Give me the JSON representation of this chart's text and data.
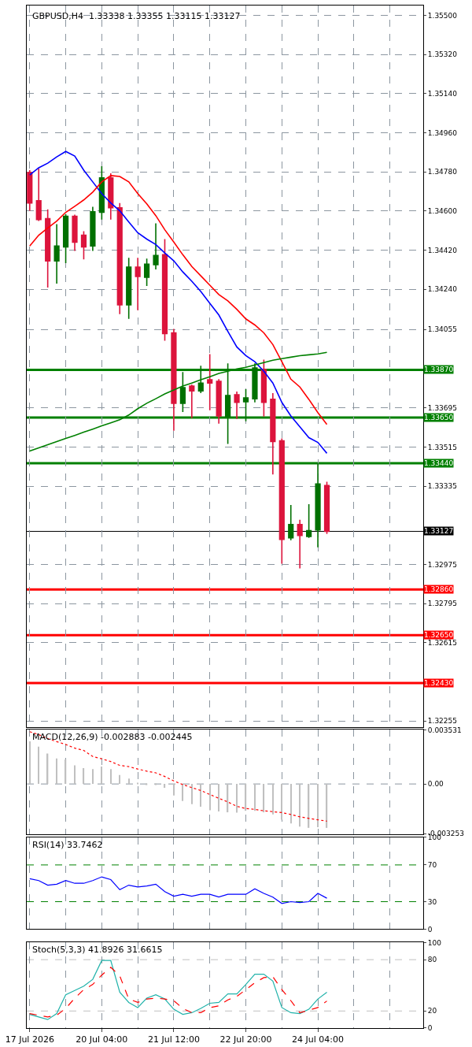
{
  "chart_data": [
    {
      "type": "candlestick",
      "title": "GBPUSD,H4  1.33338 1.33355 1.33115 1.33127",
      "tick_labels": "y",
      "grid": true,
      "ohlc": [
        [
          1.34777,
          1.34788,
          1.34601,
          1.34637
        ],
        [
          1.34647,
          1.34795,
          1.34554,
          1.34561
        ],
        [
          1.34565,
          1.34608,
          1.34248,
          1.34371
        ],
        [
          1.34371,
          1.3454,
          1.34266,
          1.34439
        ],
        [
          1.34435,
          1.34586,
          1.3436,
          1.34576
        ],
        [
          1.34576,
          1.34583,
          1.34417,
          1.34457
        ],
        [
          1.34489,
          1.34507,
          1.34378,
          1.34435
        ],
        [
          1.34439,
          1.34619,
          1.34417,
          1.34597
        ],
        [
          1.34594,
          1.34806,
          1.34561,
          1.34752
        ],
        [
          1.34752,
          1.34773,
          1.34561,
          1.34615
        ],
        [
          1.34615,
          1.34637,
          1.34126,
          1.34169
        ],
        [
          1.34169,
          1.34385,
          1.34104,
          1.34342
        ],
        [
          1.34342,
          1.34385,
          1.34144,
          1.34299
        ],
        [
          1.34295,
          1.34381,
          1.34255,
          1.34356
        ],
        [
          1.34353,
          1.34543,
          1.34331,
          1.34396
        ],
        [
          1.34399,
          1.34471,
          1.34004,
          1.34036
        ],
        [
          1.3404,
          1.34058,
          1.3359,
          1.33716
        ],
        [
          1.33716,
          1.3386,
          1.33676,
          1.33788
        ],
        [
          1.33795,
          1.33802,
          1.33648,
          1.33773
        ],
        [
          1.33773,
          1.33889,
          1.33763,
          1.33809
        ],
        [
          1.33824,
          1.33942,
          1.33684,
          1.33809
        ],
        [
          1.33817,
          1.33827,
          1.33622,
          1.33658
        ],
        [
          1.33655,
          1.33899,
          1.33529,
          1.33752
        ],
        [
          1.33755,
          1.3377,
          1.33644,
          1.3372
        ],
        [
          1.33723,
          1.33781,
          1.33633,
          1.33741
        ],
        [
          1.33737,
          1.33899,
          1.3372,
          1.33878
        ],
        [
          1.33871,
          1.33917,
          1.33655,
          1.3372
        ],
        [
          1.33734,
          1.33763,
          1.33389,
          1.3354
        ],
        [
          1.33543,
          1.33554,
          1.32978,
          1.3309
        ],
        [
          1.33097,
          1.33248,
          1.33086,
          1.33158
        ],
        [
          1.33158,
          1.3318,
          1.32957,
          1.33108
        ],
        [
          1.33104,
          1.33252,
          1.33097,
          1.3313
        ],
        [
          1.33133,
          1.33439,
          1.33054,
          1.33345
        ],
        [
          1.33338,
          1.33355,
          1.33115,
          1.33127
        ],
        null,
        null,
        null,
        null,
        null,
        null,
        null,
        null,
        null,
        null
      ],
      "colors": [
        "#dc143c",
        "#dc143c",
        "#dc143c",
        "#007000",
        "#007000",
        "#dc143c",
        "#dc143c",
        "#007000",
        "#007000",
        "#dc143c",
        "#dc143c",
        "#007000",
        "#dc143c",
        "#007000",
        "#007000",
        "#dc143c",
        "#dc143c",
        "#007000",
        "#dc143c",
        "#007000",
        "#dc143c",
        "#dc143c",
        "#007000",
        "#dc143c",
        "#007000",
        "#007000",
        "#dc143c",
        "#dc143c",
        "#dc143c",
        "#007000",
        "#dc143c",
        "#007000",
        "#007000",
        "#dc143c",
        null,
        null,
        null,
        null,
        null,
        null,
        null,
        null,
        null,
        null
      ],
      "series": [
        {
          "type": "line",
          "color": "#0000ff",
          "values": [
            1.34766,
            1.34799,
            1.3482,
            1.34849,
            1.34874,
            1.34853,
            1.34788,
            1.34734,
            1.3468,
            1.34637,
            1.34601,
            1.3455,
            1.345,
            1.34471,
            1.34446,
            1.34407,
            1.34371,
            1.3432,
            1.34277,
            1.3423,
            1.34176,
            1.34122,
            1.34047,
            1.33975,
            1.33935,
            1.33907,
            1.33863,
            1.33809,
            1.3372,
            1.33658,
            1.33608,
            1.33558,
            1.33536,
            1.33486,
            null,
            null,
            null,
            null,
            null,
            null,
            null,
            null,
            null,
            null
          ]
        },
        {
          "type": "line",
          "color": "#ff0000",
          "values": [
            1.34439,
            1.34489,
            1.34522,
            1.34554,
            1.34594,
            1.34622,
            1.34651,
            1.34687,
            1.34734,
            1.34763,
            1.34759,
            1.34734,
            1.3468,
            1.34633,
            1.34579,
            1.34514,
            1.34457,
            1.34399,
            1.34345,
            1.34302,
            1.34259,
            1.34216,
            1.34187,
            1.34148,
            1.34104,
            1.34076,
            1.3404,
            1.33986,
            1.33907,
            1.33827,
            1.33791,
            1.33734,
            1.33673,
            1.33619,
            null,
            null,
            null,
            null,
            null,
            null,
            null,
            null,
            null,
            null
          ]
        },
        {
          "type": "line",
          "color": "#008000",
          "values": [
            1.33496,
            1.33511,
            1.33525,
            1.3354,
            1.33554,
            1.33568,
            1.33583,
            1.33597,
            1.33612,
            1.33626,
            1.3364,
            1.33662,
            1.33691,
            1.33716,
            1.33737,
            1.33759,
            1.33777,
            1.33795,
            1.33809,
            1.33824,
            1.33838,
            1.33853,
            1.33863,
            1.33874,
            1.33881,
            1.33892,
            1.33903,
            1.33914,
            1.33921,
            1.33928,
            1.33935,
            1.33939,
            1.33943,
            1.3395,
            null,
            null,
            null,
            null,
            null,
            null,
            null,
            null,
            null,
            null
          ]
        }
      ],
      "ylim": [
        1.32225,
        1.35545
      ],
      "yticks": [
        {
          "value": 1.355,
          "label": "1.35500"
        },
        {
          "value": 1.3532,
          "label": "1.35320"
        },
        {
          "value": 1.3514,
          "label": "1.35140"
        },
        {
          "value": 1.3496,
          "label": "1.34960"
        },
        {
          "value": 1.3478,
          "label": "1.34780"
        },
        {
          "value": 1.346,
          "label": "1.34600"
        },
        {
          "value": 1.3442,
          "label": "1.34420"
        },
        {
          "value": 1.3424,
          "label": "1.34240"
        },
        {
          "value": 1.34055,
          "label": "1.34055"
        },
        {
          "value": 1.33695,
          "label": "1.33695"
        },
        {
          "value": 1.33515,
          "label": "1.33515"
        },
        {
          "value": 1.33335,
          "label": "1.33335"
        },
        {
          "value": 1.32975,
          "label": "1.32975"
        },
        {
          "value": 1.32795,
          "label": "1.32795"
        },
        {
          "value": 1.32615,
          "label": "1.32615"
        },
        {
          "value": 1.32255,
          "label": "1.32255"
        }
      ],
      "ref_lines": [
        {
          "axis": "y",
          "value": 1.3387,
          "label": "1.33870",
          "color": "#008000"
        },
        {
          "axis": "y",
          "value": 1.3365,
          "label": "1.33650",
          "color": "#008000"
        },
        {
          "axis": "y",
          "value": 1.3344,
          "label": "1.33440",
          "color": "#008000"
        },
        {
          "axis": "y",
          "value": 1.33127,
          "label": "1.33127",
          "color": "#000000"
        },
        {
          "axis": "y",
          "value": 1.3286,
          "label": "1.32860",
          "color": "#ff0000"
        },
        {
          "axis": "y",
          "value": 1.3265,
          "label": "1.32650",
          "color": "#ff0000"
        },
        {
          "axis": "y",
          "value": 1.3243,
          "label": "1.32430",
          "color": "#ff0000"
        }
      ]
    },
    {
      "type": "bar",
      "title": "MACD(12,26,9) -0.002883 -0.002445",
      "tick_labels": "y",
      "grid": "x",
      "series": [
        {
          "type": "bar",
          "color": "#c0c0c0",
          "values": [
            0.0028,
            0.00245,
            0.002,
            0.00167,
            0.00161,
            0.00122,
            0.00104,
            0.00098,
            0.00114,
            0.00098,
            0.00059,
            0.00035,
            4e-05,
            -4e-05,
            -4e-05,
            -0.00025,
            -0.00075,
            -0.00112,
            -0.00133,
            -0.00149,
            -0.00173,
            -0.0018,
            -0.00186,
            -0.00188,
            -0.00176,
            -0.00176,
            -0.00186,
            -0.002,
            -0.00235,
            -0.00259,
            -0.0028,
            -0.00288,
            -0.00284,
            -0.002883,
            null,
            null,
            null,
            null,
            null,
            null,
            null,
            null,
            null,
            null
          ]
        },
        {
          "type": "line",
          "color": "#ff0000",
          "line_style": "dotted",
          "values": [
            0.00343,
            0.00324,
            0.00298,
            0.00278,
            0.00259,
            0.00235,
            0.0022,
            0.0018,
            0.00165,
            0.00147,
            0.00122,
            0.00114,
            0.00098,
            0.00084,
            0.00073,
            0.00049,
            0.0002,
            -4e-05,
            -0.00024,
            -0.00043,
            -0.00069,
            -0.00094,
            -0.00118,
            -0.00147,
            -0.00161,
            -0.00167,
            -0.00176,
            -0.00182,
            -0.00188,
            -0.002,
            -0.00216,
            -0.00226,
            -0.00235,
            -0.002445,
            null,
            null,
            null,
            null,
            null,
            null,
            null,
            null,
            null,
            null
          ]
        }
      ],
      "ylim": [
        -0.0033,
        0.00355
      ],
      "yticks": [
        {
          "value": 0.003531,
          "label": "0.003531"
        },
        {
          "value": 0,
          "label": "0.00"
        },
        {
          "value": -0.003253,
          "label": "-0.003253"
        }
      ],
      "ref_lines": [
        {
          "axis": "y",
          "value": 0,
          "color": "#8c96a0",
          "line_style": "dashed"
        }
      ]
    },
    {
      "type": "line",
      "title": "RSI(14) 33.7462",
      "tick_labels": "y",
      "grid": "x",
      "series": [
        {
          "type": "line",
          "color": "#0000ff",
          "values": [
            55,
            53,
            48,
            49,
            53,
            50,
            50,
            53,
            57,
            54,
            43,
            48,
            46,
            47,
            49,
            41,
            36,
            38,
            36,
            38,
            38,
            35,
            38,
            38,
            38,
            44,
            39,
            35,
            28,
            30,
            29,
            30,
            39,
            33.7462,
            null,
            null,
            null,
            null,
            null,
            null,
            null,
            null,
            null,
            null
          ]
        }
      ],
      "ylim": [
        0,
        100
      ],
      "yticks": [
        100,
        70,
        30,
        0
      ],
      "ref_lines": [
        {
          "axis": "y",
          "value": 70,
          "color": "#008000",
          "line_style": "dashed"
        },
        {
          "axis": "y",
          "value": 30,
          "color": "#008000",
          "line_style": "dashed"
        }
      ]
    },
    {
      "type": "line",
      "title": "Stoch(5,3,3) 41.8926 31.6615",
      "grid": "x",
      "categories": [
        "17 Jul 2026",
        null,
        null,
        null,
        null,
        null,
        null,
        null,
        "20 Jul 04:00",
        null,
        null,
        null,
        null,
        null,
        null,
        null,
        "21 Jul 12:00",
        null,
        null,
        null,
        null,
        null,
        null,
        null,
        "22 Jul 20:00",
        null,
        null,
        null,
        null,
        null,
        null,
        null,
        "24 Jul 04:00",
        null,
        null,
        null,
        null,
        null,
        null,
        null,
        null,
        null,
        null,
        null
      ],
      "series": [
        {
          "type": "line",
          "color": "#20b2aa",
          "values": [
            16,
            13,
            10,
            17,
            39,
            44,
            49,
            57,
            79,
            79,
            42,
            30,
            24,
            35,
            39,
            34,
            22,
            16,
            18,
            23,
            29,
            30,
            40,
            40,
            51,
            63,
            63,
            55,
            24,
            18,
            17,
            22,
            34,
            41.8926,
            null,
            null,
            null,
            null,
            null,
            null,
            null,
            null,
            null,
            null
          ]
        },
        {
          "type": "line",
          "color": "#ff0000",
          "line_style": "dashed",
          "values": [
            17,
            15,
            13,
            15,
            23,
            35,
            45,
            51,
            62,
            71,
            61,
            34,
            30,
            34,
            35,
            34,
            32,
            23,
            18,
            18,
            24,
            26,
            33,
            37,
            45,
            53,
            59,
            60,
            45,
            32,
            18,
            21,
            24,
            31.6615,
            null,
            null,
            null,
            null,
            null,
            null,
            null,
            null,
            null,
            null
          ]
        }
      ],
      "ylim": [
        0,
        100
      ],
      "yticks": [
        100,
        80,
        20,
        0
      ],
      "ref_lines": [
        {
          "axis": "y",
          "value": 80,
          "color": "#c0c0c0",
          "line_style": "dashed"
        },
        {
          "axis": "y",
          "value": 20,
          "color": "#c0c0c0",
          "line_style": "dashed"
        }
      ]
    }
  ]
}
